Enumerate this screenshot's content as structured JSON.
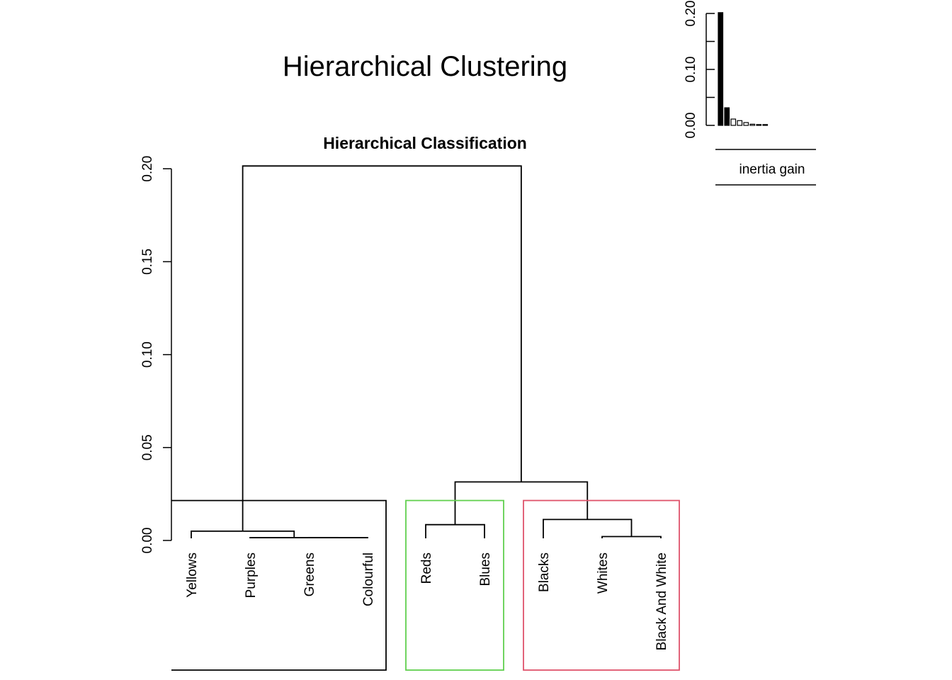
{
  "title": "Hierarchical Clustering",
  "chart_data": [
    {
      "type": "dendrogram",
      "title": "Hierarchical Classification",
      "xlabel": "",
      "ylabel": "",
      "ylim": [
        0,
        0.21
      ],
      "yticks": [
        "0.00",
        "0.05",
        "0.10",
        "0.15",
        "0.20"
      ],
      "leaves": [
        "Yellows",
        "Purples",
        "Greens",
        "Colourful",
        "Reds",
        "Blues",
        "Blacks",
        "Whites",
        "Black And White"
      ],
      "merges": [
        {
          "a": "Greens",
          "b": "Colourful",
          "height": 0.0015
        },
        {
          "a": "Purples",
          "b": "Greens+Colourful",
          "height": 0.0015
        },
        {
          "a": "Yellows",
          "b": "Purples+Greens+Colourful",
          "height": 0.005
        },
        {
          "a": "Reds",
          "b": "Blues",
          "height": 0.0085
        },
        {
          "a": "Whites",
          "b": "Black And White",
          "height": 0.0021
        },
        {
          "a": "Blacks",
          "b": "Whites+Black And White",
          "height": 0.0113
        },
        {
          "a": "Reds+Blues",
          "b": "Blacks+Whites+Black And White",
          "height": 0.0315
        },
        {
          "a": "Yellows+Purples+Greens+Colourful",
          "b": "Reds+Blues+Blacks+Whites+Black And White",
          "height": 0.2015
        }
      ],
      "cut_height": 0.0215,
      "clusters": [
        {
          "members": [
            "Yellows",
            "Purples",
            "Greens",
            "Colourful"
          ],
          "color": "#000000"
        },
        {
          "members": [
            "Reds",
            "Blues"
          ],
          "color": "#61d04f"
        },
        {
          "members": [
            "Blacks",
            "Whites",
            "Black And White"
          ],
          "color": "#df536b"
        }
      ]
    },
    {
      "type": "bar",
      "legend": "inertia gain",
      "ylim": [
        0,
        0.2
      ],
      "yticks": [
        "0.00",
        "0.10",
        "0.20"
      ],
      "values": [
        0.2015,
        0.0315,
        0.0113,
        0.0085,
        0.005,
        0.0021,
        0.0015,
        0.0015
      ],
      "highlight_count": 2
    }
  ]
}
